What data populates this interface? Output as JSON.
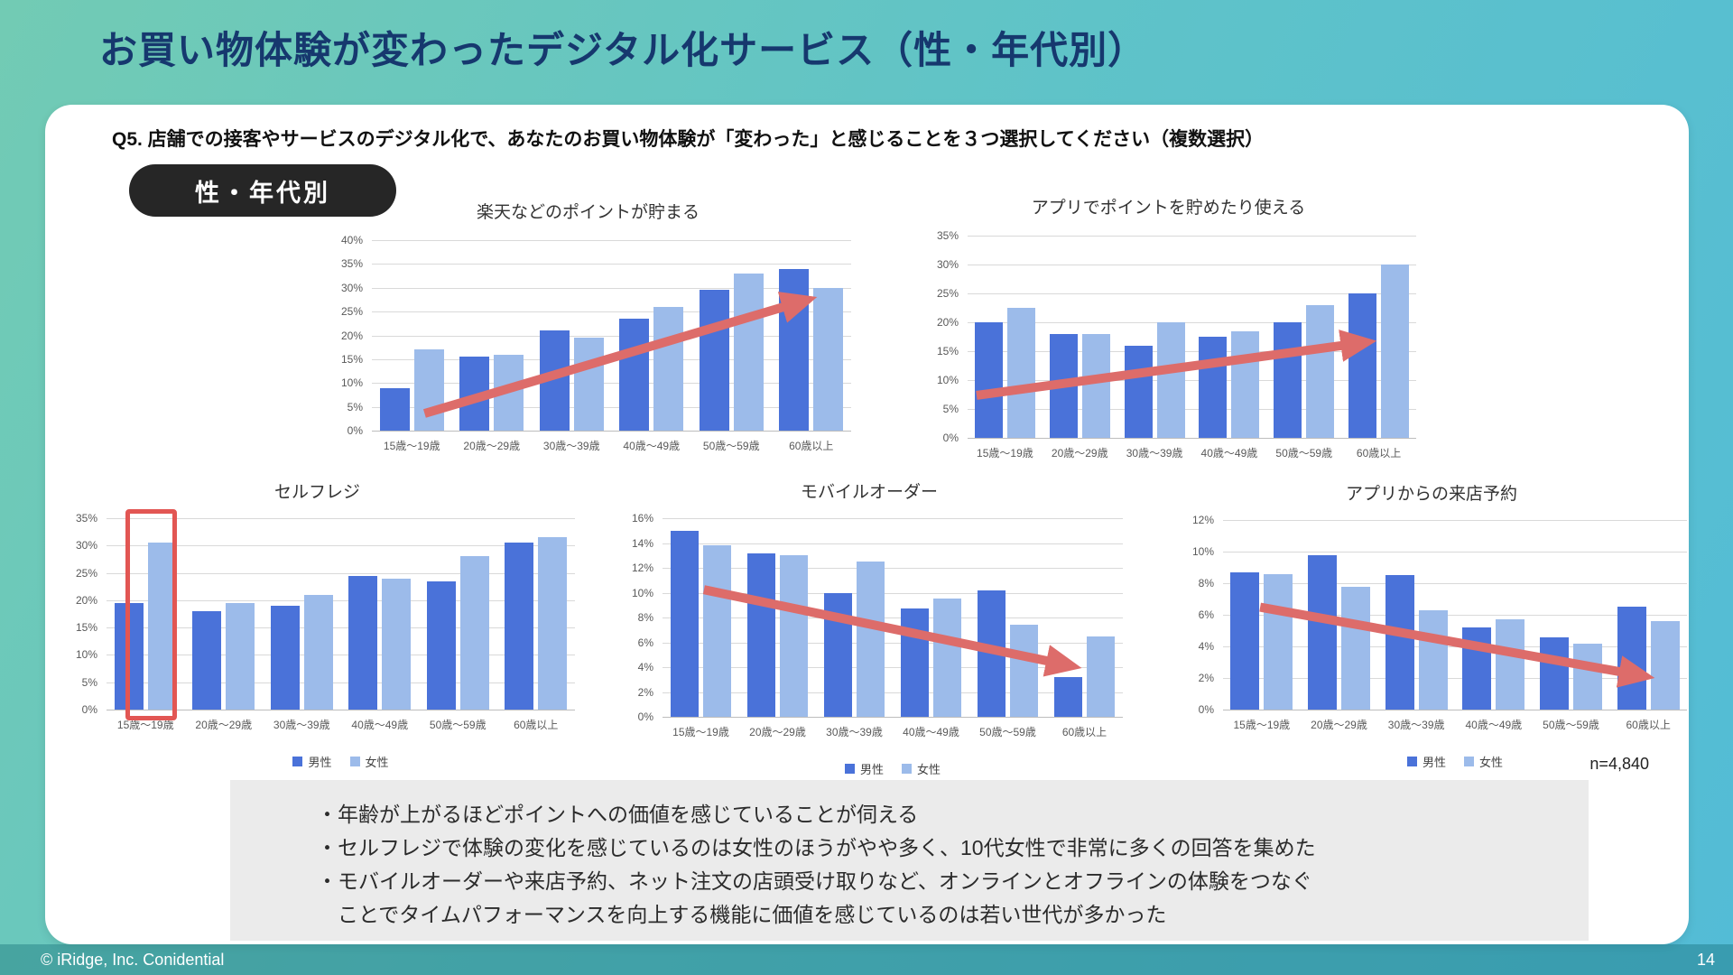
{
  "title": "お買い物体験が変わったデジタル化サービス（性・年代別）",
  "question": "Q5. 店舗での接客やサービスのデジタル化で、あなたのお買い物体験が「変わった」と感じることを３つ選択してください（複数選択）",
  "badge": "性・年代別",
  "sample_size": "n=4,840",
  "colors": {
    "male_bar": "#4a72d9",
    "female_bar": "#9cbbea",
    "trend_arrow": "#dd6c6a",
    "highlight_box": "#e25653"
  },
  "chart_data": [
    {
      "type": "bar",
      "title": "楽天などのポイントが貯まる",
      "categories": [
        "15歳〜19歳",
        "20歳〜29歳",
        "30歳〜39歳",
        "40歳〜49歳",
        "50歳〜59歳",
        "60歳以上"
      ],
      "series": [
        {
          "name": "男性",
          "values": [
            9,
            15.5,
            21,
            23.5,
            29.5,
            34
          ]
        },
        {
          "name": "女性",
          "values": [
            17,
            16,
            19.5,
            26,
            33,
            30
          ]
        }
      ],
      "ylim": [
        0,
        40
      ],
      "ytick_step": 5,
      "ytick_format": "percent",
      "grid": true,
      "legend": false,
      "annotations": [
        {
          "type": "trend-arrow",
          "direction": "up"
        }
      ]
    },
    {
      "type": "bar",
      "title": "アプリでポイントを貯めたり使える",
      "categories": [
        "15歳〜19歳",
        "20歳〜29歳",
        "30歳〜39歳",
        "40歳〜49歳",
        "50歳〜59歳",
        "60歳以上"
      ],
      "series": [
        {
          "name": "男性",
          "values": [
            20,
            18,
            16,
            17.5,
            20,
            25
          ]
        },
        {
          "name": "女性",
          "values": [
            22.5,
            18,
            20,
            18.5,
            23,
            30
          ]
        }
      ],
      "ylim": [
        0,
        35
      ],
      "ytick_step": 5,
      "ytick_format": "percent",
      "grid": true,
      "legend": false,
      "annotations": [
        {
          "type": "trend-arrow",
          "direction": "up"
        }
      ]
    },
    {
      "type": "bar",
      "title": "セルフレジ",
      "categories": [
        "15歳〜19歳",
        "20歳〜29歳",
        "30歳〜39歳",
        "40歳〜49歳",
        "50歳〜59歳",
        "60歳以上"
      ],
      "series": [
        {
          "name": "男性",
          "values": [
            19.5,
            18,
            19,
            24.5,
            23.5,
            30.5
          ]
        },
        {
          "name": "女性",
          "values": [
            30.5,
            19.5,
            21,
            24,
            28,
            31.5
          ]
        }
      ],
      "ylim": [
        0,
        35
      ],
      "ytick_step": 5,
      "ytick_format": "percent",
      "grid": true,
      "legend": true,
      "annotations": [
        {
          "type": "highlight-box",
          "category": "15歳〜19歳",
          "series": "女性"
        }
      ]
    },
    {
      "type": "bar",
      "title": "モバイルオーダー",
      "categories": [
        "15歳〜19歳",
        "20歳〜29歳",
        "30歳〜39歳",
        "40歳〜49歳",
        "50歳〜59歳",
        "60歳以上"
      ],
      "series": [
        {
          "name": "男性",
          "values": [
            15,
            13.2,
            10,
            8.7,
            10.2,
            3.2
          ]
        },
        {
          "name": "女性",
          "values": [
            13.8,
            13,
            12.5,
            9.5,
            7.4,
            6.5
          ]
        }
      ],
      "ylim": [
        0,
        16
      ],
      "ytick_step": 2,
      "ytick_format": "percent",
      "grid": true,
      "legend": true,
      "annotations": [
        {
          "type": "trend-arrow",
          "direction": "down"
        }
      ]
    },
    {
      "type": "bar",
      "title": "アプリからの来店予約",
      "categories": [
        "15歳〜19歳",
        "20歳〜29歳",
        "30歳〜39歳",
        "40歳〜49歳",
        "50歳〜59歳",
        "60歳以上"
      ],
      "series": [
        {
          "name": "男性",
          "values": [
            8.7,
            9.8,
            8.5,
            5.2,
            4.6,
            6.5
          ]
        },
        {
          "name": "女性",
          "values": [
            8.6,
            7.8,
            6.3,
            5.7,
            4.2,
            5.6
          ]
        }
      ],
      "ylim": [
        0,
        12
      ],
      "ytick_step": 2,
      "ytick_format": "percent",
      "grid": true,
      "legend": true,
      "annotations": [
        {
          "type": "trend-arrow",
          "direction": "down"
        }
      ]
    }
  ],
  "summary": [
    "・年齢が上がるほどポイントへの価値を感じていることが伺える",
    "・セルフレジで体験の変化を感じているのは女性のほうがやや多く、10代女性で非常に多くの回答を集めた",
    "・モバイルオーダーや来店予約、ネット注文の店頭受け取りなど、オンラインとオフラインの体験をつなぐ",
    "　ことでタイムパフォーマンスを向上する機能に価値を感じているのは若い世代が多かった"
  ],
  "footer": {
    "copyright": "© iRidge, Inc. Conidential",
    "page_number": "14"
  }
}
